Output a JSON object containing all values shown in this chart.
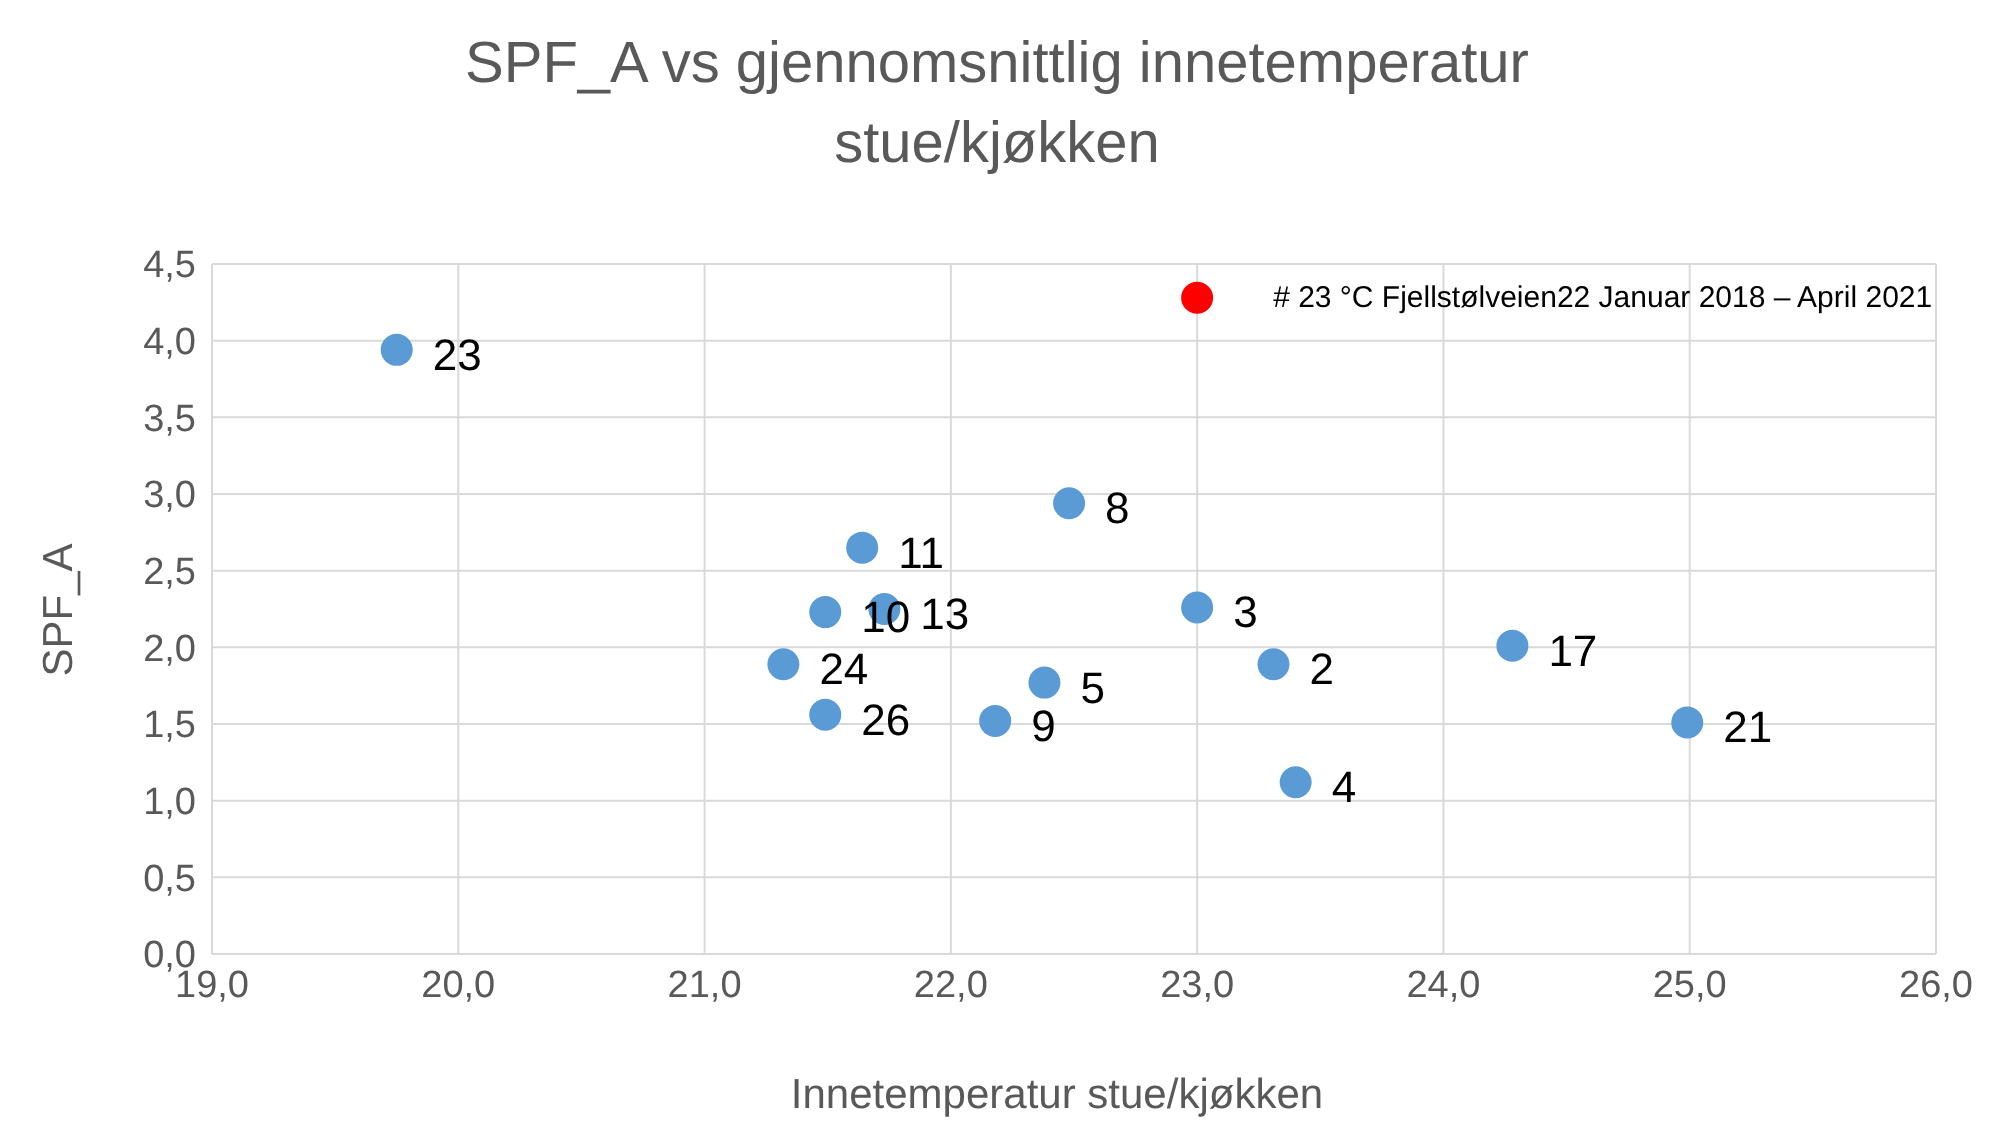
{
  "chart_data": {
    "type": "scatter",
    "title": "SPF_A vs gjennomsnittlig innetemperatur stue/kjøkken",
    "xlabel": "Innetemperatur stue/kjøkken",
    "ylabel": "SPF_A",
    "series": [
      {
        "color": "#5b9bd5",
        "x": [
          19.75,
          21.64,
          21.49,
          21.73,
          21.32,
          21.49,
          22.18,
          22.48,
          23.0,
          23.31,
          22.38,
          24.28,
          24.99,
          23.4
        ],
        "values": [
          3.94,
          2.65,
          2.23,
          2.25,
          1.89,
          1.56,
          1.52,
          2.94,
          2.26,
          1.89,
          1.77,
          2.01,
          1.51,
          1.12
        ]
      },
      {
        "name": "# 23 °C    Fjellstølveien22 Januar 2018 – April 2021",
        "color": "#ff0000",
        "x": [
          23.0
        ],
        "values": [
          4.28
        ]
      }
    ],
    "annotations": [
      {
        "text": "23",
        "x": 19.75,
        "y": 3.94
      },
      {
        "text": "11",
        "x": 21.64,
        "y": 2.65
      },
      {
        "text": "10",
        "x": 21.49,
        "y": 2.23
      },
      {
        "text": "13",
        "x": 21.73,
        "y": 2.25
      },
      {
        "text": "24",
        "x": 21.32,
        "y": 1.89
      },
      {
        "text": "26",
        "x": 21.49,
        "y": 1.56
      },
      {
        "text": "9",
        "x": 22.18,
        "y": 1.52
      },
      {
        "text": "8",
        "x": 22.48,
        "y": 2.94
      },
      {
        "text": "3",
        "x": 23.0,
        "y": 2.26
      },
      {
        "text": "2",
        "x": 23.31,
        "y": 1.89
      },
      {
        "text": "5",
        "x": 22.38,
        "y": 1.77
      },
      {
        "text": "17",
        "x": 24.28,
        "y": 2.01
      },
      {
        "text": "21",
        "x": 24.99,
        "y": 1.51
      },
      {
        "text": "4",
        "x": 23.4,
        "y": 1.12
      }
    ],
    "xlim": [
      19,
      26
    ],
    "xticks": [
      {
        "value": 19,
        "label": "19,0"
      },
      {
        "value": 20,
        "label": "20,0"
      },
      {
        "value": 21,
        "label": "21,0"
      },
      {
        "value": 22,
        "label": "22,0"
      },
      {
        "value": 23,
        "label": "23,0"
      },
      {
        "value": 24,
        "label": "24,0"
      },
      {
        "value": 25,
        "label": "25,0"
      },
      {
        "value": 26,
        "label": "26,0"
      }
    ],
    "ylim": [
      0,
      4.5
    ],
    "yticks": [
      {
        "value": 0,
        "label": "0,0"
      },
      {
        "value": 0.5,
        "label": "0,5"
      },
      {
        "value": 1,
        "label": "1,0"
      },
      {
        "value": 1.5,
        "label": "1,5"
      },
      {
        "value": 2,
        "label": "2,0"
      },
      {
        "value": 2.5,
        "label": "2,5"
      },
      {
        "value": 3,
        "label": "3,0"
      },
      {
        "value": 3.5,
        "label": "3,5"
      },
      {
        "value": 4,
        "label": "4,0"
      },
      {
        "value": 4.5,
        "label": "4,5"
      }
    ],
    "grid": true,
    "legend": false,
    "marker": "circle"
  }
}
